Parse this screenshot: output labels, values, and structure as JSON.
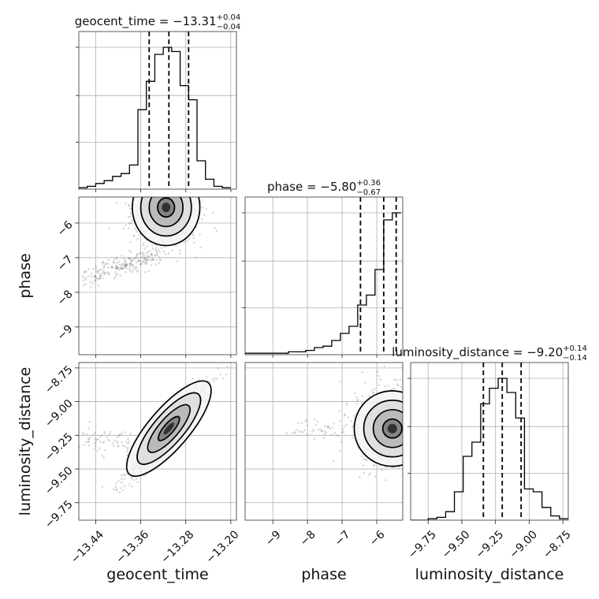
{
  "chart_data": {
    "type": "corner",
    "parameters": [
      "geocent_time",
      "phase",
      "luminosity_distance"
    ],
    "axis_labels": {
      "geocent_time": "geocent_time",
      "phase": "phase",
      "luminosity_distance": "luminosity_distance"
    },
    "ranges": {
      "geocent_time": [
        -13.47,
        -13.19
      ],
      "phase": [
        -9.8,
        -5.25
      ],
      "luminosity_distance": [
        -9.88,
        -8.71
      ]
    },
    "ticks": {
      "geocent_time": [
        {
          "value": -13.44,
          "label": "−13.44"
        },
        {
          "value": -13.36,
          "label": "−13.36"
        },
        {
          "value": -13.28,
          "label": "−13.28"
        },
        {
          "value": -13.2,
          "label": "−13.20"
        }
      ],
      "phase": [
        {
          "value": -9,
          "label": "−9"
        },
        {
          "value": -8,
          "label": "−8"
        },
        {
          "value": -7,
          "label": "−7"
        },
        {
          "value": -6,
          "label": "−6"
        }
      ],
      "luminosity_distance": [
        {
          "value": -9.75,
          "label": "−9.75"
        },
        {
          "value": -9.5,
          "label": "−9.50"
        },
        {
          "value": -9.25,
          "label": "−9.25"
        },
        {
          "value": -9.0,
          "label": "−9.00"
        },
        {
          "value": -8.75,
          "label": "−8.75"
        }
      ]
    },
    "marginals": [
      {
        "parameter": "geocent_time",
        "title_prefix": "geocent_time = ",
        "median": "−13.31",
        "plus": "+0.04",
        "minus": "−0.04",
        "quantiles": [
          -13.345,
          -13.31,
          -13.275
        ],
        "bin_edges": [
          -13.47,
          -13.455,
          -13.44,
          -13.425,
          -13.41,
          -13.395,
          -13.38,
          -13.365,
          -13.35,
          -13.335,
          -13.32,
          -13.305,
          -13.29,
          -13.275,
          -13.26,
          -13.245,
          -13.23,
          -13.215,
          -13.2
        ],
        "counts": [
          0.01,
          0.02,
          0.04,
          0.06,
          0.09,
          0.11,
          0.17,
          0.56,
          0.76,
          0.95,
          1.0,
          0.97,
          0.73,
          0.63,
          0.2,
          0.07,
          0.02,
          0.01
        ]
      },
      {
        "parameter": "phase",
        "title_prefix": "phase = ",
        "median": "−5.80",
        "plus": "+0.36",
        "minus": "−0.67",
        "quantiles": [
          -6.47,
          -5.8,
          -5.44
        ],
        "bin_edges": [
          -9.8,
          -9.55,
          -9.3,
          -9.05,
          -8.8,
          -8.55,
          -8.3,
          -8.05,
          -7.8,
          -7.55,
          -7.3,
          -7.05,
          -6.8,
          -6.55,
          -6.3,
          -6.05,
          -5.8,
          -5.55,
          -5.3
        ],
        "counts": [
          0.01,
          0.01,
          0.01,
          0.01,
          0.01,
          0.02,
          0.02,
          0.03,
          0.05,
          0.06,
          0.1,
          0.15,
          0.2,
          0.35,
          0.42,
          0.6,
          0.95,
          1.0
        ]
      },
      {
        "parameter": "luminosity_distance",
        "title_prefix": "luminosity_distance = ",
        "median": "−9.20",
        "plus": "+0.14",
        "minus": "−0.14",
        "quantiles": [
          -9.34,
          -9.2,
          -9.06
        ],
        "bin_edges": [
          -9.88,
          -9.815,
          -9.75,
          -9.685,
          -9.62,
          -9.555,
          -9.49,
          -9.425,
          -9.36,
          -9.295,
          -9.23,
          -9.165,
          -9.1,
          -9.035,
          -8.97,
          -8.905,
          -8.84,
          -8.775,
          -8.71
        ],
        "counts": [
          0.0,
          0.0,
          0.01,
          0.02,
          0.06,
          0.2,
          0.45,
          0.55,
          0.82,
          0.93,
          1.0,
          0.9,
          0.72,
          0.22,
          0.2,
          0.09,
          0.03,
          0.01
        ]
      }
    ],
    "pairs": [
      {
        "x": "geocent_time",
        "y": "phase",
        "mode": [
          -13.315,
          -5.55
        ],
        "spread": [
          0.03,
          0.55
        ],
        "correlation": 0.0,
        "tail": {
          "from": [
            -13.46,
            -7.6
          ],
          "to": [
            -13.33,
            -6.9
          ],
          "fraction": 0.22
        }
      },
      {
        "x": "geocent_time",
        "y": "luminosity_distance",
        "mode": [
          -13.31,
          -9.2
        ],
        "spread": [
          0.035,
          0.17
        ],
        "correlation": 0.95,
        "tail": {
          "from": [
            -13.46,
            -9.28
          ],
          "to": [
            -13.37,
            -9.33
          ],
          "fraction": 0.06
        }
      },
      {
        "x": "phase",
        "y": "luminosity_distance",
        "mode": [
          -5.55,
          -9.2
        ],
        "spread": [
          0.55,
          0.14
        ],
        "correlation": 0.0,
        "tail": {
          "from": [
            -8.5,
            -9.2
          ],
          "to": [
            -7.0,
            -9.2
          ],
          "fraction": 0.05
        }
      }
    ]
  }
}
